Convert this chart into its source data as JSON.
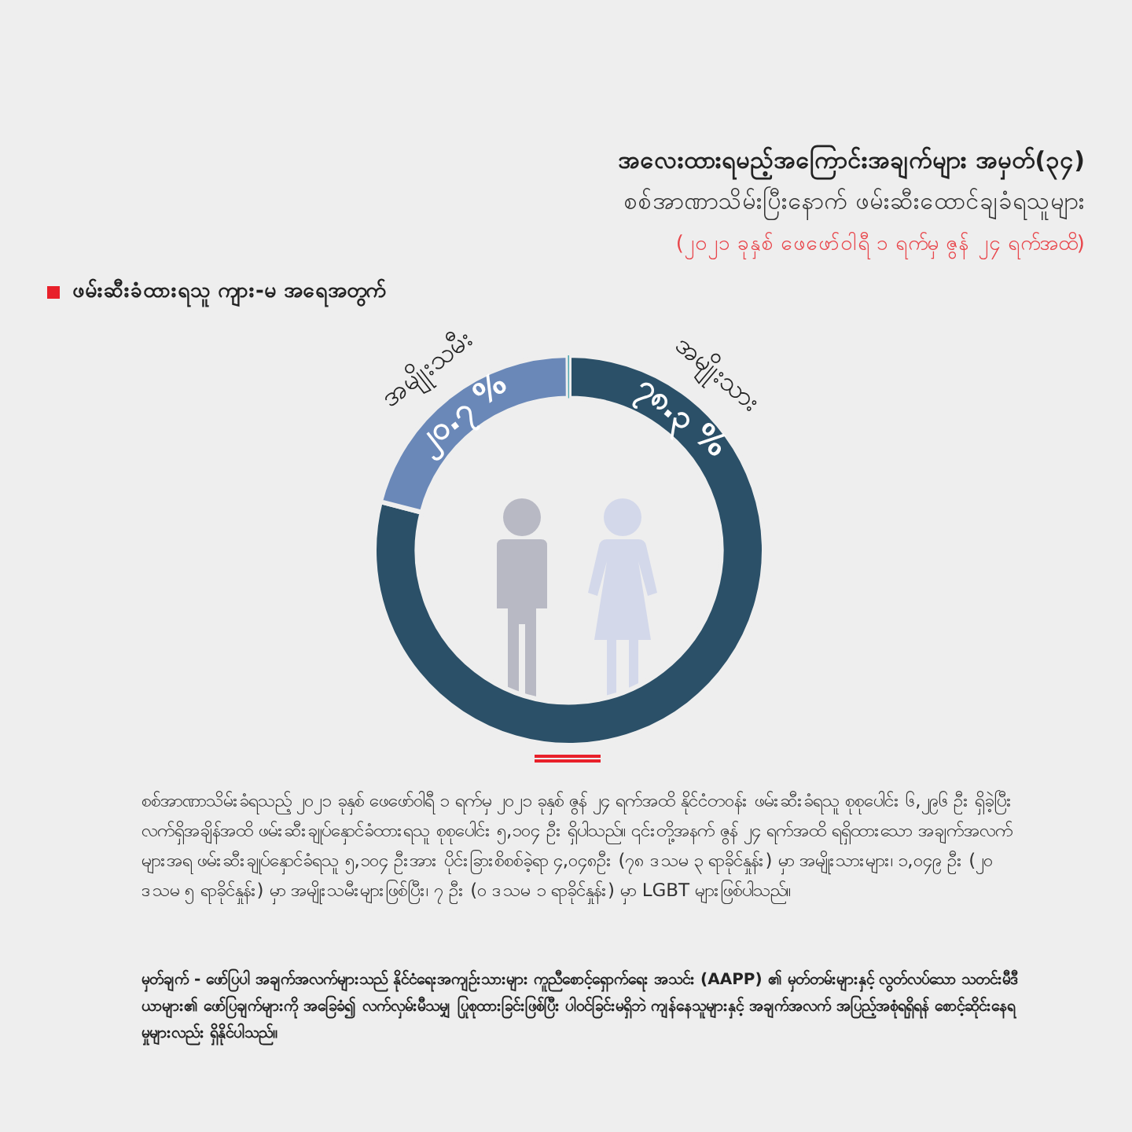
{
  "chart_data": {
    "type": "donut",
    "title": "အလေးထားရမည့်အကြောင်းအချက်များ အမှတ်(၃၄)",
    "subtitle": "စစ်အာဏာသိမ်းပြီးနောက် ဖမ်းဆီးထောင်ချခံရသူများ",
    "categories": [
      "အမျိုးသား",
      "အမျိုးသမီး",
      null
    ],
    "values": [
      78.3,
      20.7,
      0.1
    ],
    "colors": [
      "#2b5068",
      "#6a88b8",
      "#4fa8b0"
    ],
    "value_labels": [
      "၇၈.၃ %",
      "၂၀.၇ %",
      null
    ],
    "annotations": [
      "(၂၀၂၁ ခုနှစ် ဖေဖော်ဝါရီ ၁ ရက်မှ ဇွန် ၂၄ ရက်အထိ)",
      "ဖမ်းဆီးခံထားရသူ ကျား-မ အရေအတွက်",
      "စစ်အာဏာသိမ်းခံရသည့် ၂၀၂၁ ခုနှစ် ဖေဖော်ဝါရီ ၁ ရက်မှ ၂၀၂၁ ခုနှစ် ဇွန် ၂၄ ရက်အထိ နိုင်ငံတဝန်း ဖမ်းဆီးခံရသူ စုစုပေါင်း ၆,၂၉၆ ဦး ရှိခဲ့ပြီး လက်ရှိအချိန်အထိ ဖမ်းဆီးချုပ်နှောင်ခံထားရသူ စုစုပေါင်း ၅,၁၀၄ ဦး ရှိပါသည်။ ၎င်းတို့အနက် ဇွန် ၂၄ ရက်အထိ ရရှိထားသော အချက်အလက်များအရ ဖမ်းဆီးချုပ်နှောင်ခံရသူ ၅,၁၀၄ ဦးအား ပိုင်းခြားစိစစ်ခဲ့ရာ ၄,၀၄၈ဦး (၇၈ ဒသမ ၃ ရာခိုင်နှုန်း) မှာ အမျိုးသားများ၊ ၁,၀၄၉ ဦး (၂၀ ဒသမ ၅ ရာခိုင်နှုန်း) မှာ အမျိုးသမီးများဖြစ်ပြီး၊ ၇ ဦး (၀ ဒသမ ၁ ရာခိုင်နှုန်း) မှာ LGBT များဖြစ်ပါသည်။",
      "မှတ်ချက် - ဖော်ပြပါ အချက်အလက်များသည် နိုင်ငံရေးအကျဉ်းသားများ ကူညီစောင့်ရှောက်ရေး အသင်း (AAPP) ၏ မှတ်တမ်းများနှင့် လွတ်လပ်သော သတင်းမီဒီယာများ၏ ဖော်ပြချက်များကို အခြေခံ၍ လက်လှမ်းမီသမျှ ပြုစုထားခြင်းဖြစ်ပြီး ပါဝင်ခြင်းမရှိဘဲ ကျန်နေသူများနှင့် အချက်အလက် အပြည့်အစုံရရှိရန် စောင့်ဆိုင်းနေရမှုများလည်း ရှိနိုင်ပါသည်။"
    ]
  }
}
